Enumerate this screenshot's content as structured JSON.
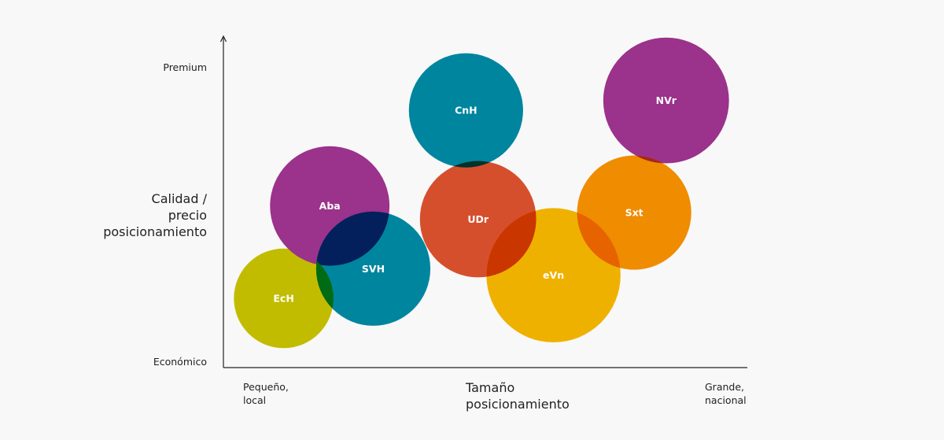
{
  "chart_data": {
    "type": "scatter",
    "subtype": "bubble",
    "ylabel_lines": [
      "Calidad /",
      "precio",
      "posicionamiento"
    ],
    "xlabel_lines": [
      "Tamaño",
      "posicionamiento"
    ],
    "y_ticks": {
      "top": "Premium",
      "bottom": "Económico"
    },
    "x_ticks": {
      "left": [
        "Pequeño,",
        "local"
      ],
      "right": [
        "Grande,",
        "nacional"
      ]
    },
    "xlim": [
      0,
      100
    ],
    "ylim": [
      0,
      100
    ],
    "grid": false,
    "legend": "none",
    "points": [
      {
        "label": "EcH",
        "x": 11.5,
        "y": 21,
        "r": 9.5,
        "color": "#c2bc00"
      },
      {
        "label": "Aba",
        "x": 20.3,
        "y": 49,
        "r": 11.4,
        "color": "#9b328b"
      },
      {
        "label": "SVH",
        "x": 28.6,
        "y": 30,
        "r": 10.9,
        "color": "#00859f"
      },
      {
        "label": "CnH",
        "x": 46.3,
        "y": 78,
        "r": 10.9,
        "color": "#00859f"
      },
      {
        "label": "UDr",
        "x": 48.6,
        "y": 45,
        "r": 11.1,
        "color": "#d64f2d"
      },
      {
        "label": "eVn",
        "x": 63.0,
        "y": 28,
        "r": 12.8,
        "color": "#efb100"
      },
      {
        "label": "NVr",
        "x": 84.5,
        "y": 81,
        "r": 12.0,
        "color": "#9b328b"
      },
      {
        "label": "Sxt",
        "x": 78.4,
        "y": 47,
        "r": 10.9,
        "color": "#ef8c00"
      }
    ],
    "overlap_colors": {
      "Aba|SVH": "#031f5c",
      "EcH|SVH": "#006b12",
      "CnH|UDr": "#00322a",
      "UDr|eVn": "#c93600",
      "NVr|Sxt": "#a1271f",
      "eVn|Sxt": "#e76300"
    }
  }
}
